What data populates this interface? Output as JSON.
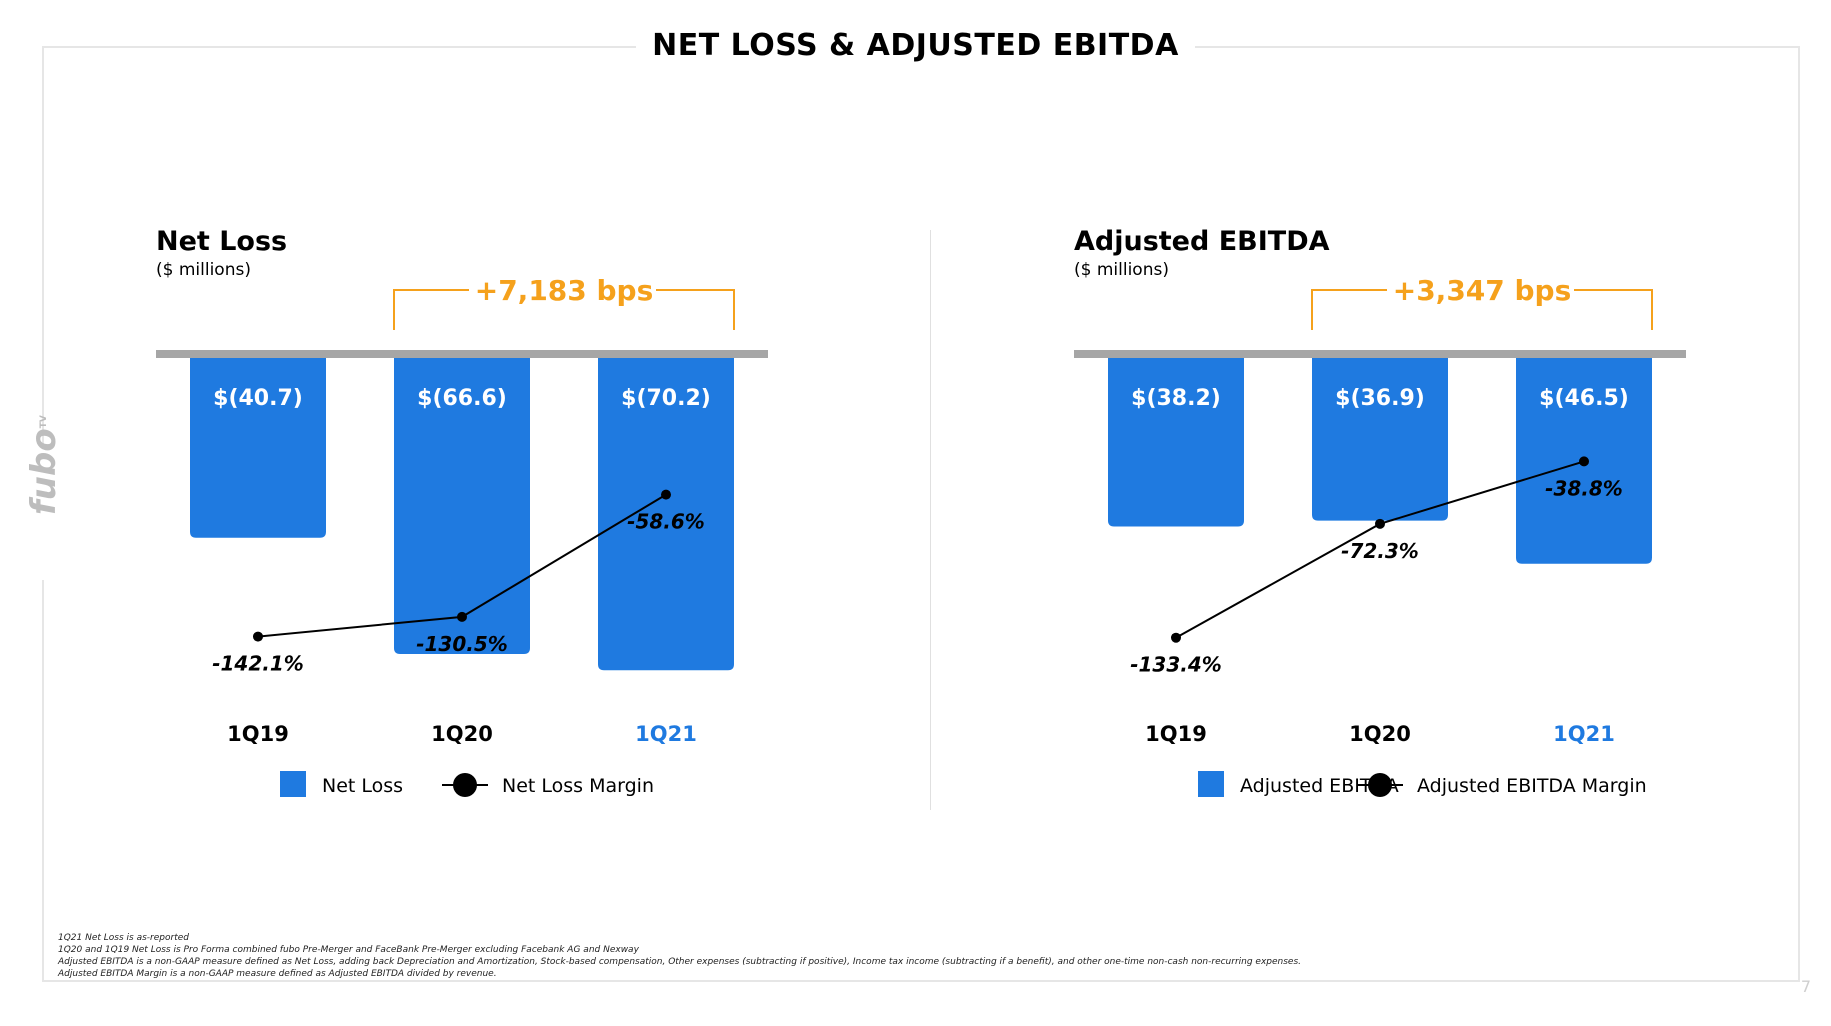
{
  "slide": {
    "title": "NET LOSS & ADJUSTED EBITDA",
    "logo_text": "fubo",
    "logo_sup": "TV",
    "page_number": "7"
  },
  "footnotes": [
    "1Q21 Net Loss is as-reported",
    "1Q20 and 1Q19 Net Loss is Pro Forma combined fubo Pre-Merger and FaceBank Pre-Merger excluding Facebank AG and Nexway",
    "Adjusted EBITDA is a non-GAAP measure defined as Net Loss, adding back Depreciation and Amortization, Stock-based compensation, Other expenses (subtracting if positive), Income tax income (subtracting if a benefit), and other one-time non-cash non-recurring expenses.",
    "Adjusted EBITDA Margin is a non-GAAP measure defined as Adjusted EBITDA divided by revenue."
  ],
  "chart_data": [
    {
      "type": "bar",
      "title": "Net Loss",
      "subtitle": "($ millions)",
      "categories": [
        "1Q19",
        "1Q20",
        "1Q21"
      ],
      "highlight_category": "1Q21",
      "series": [
        {
          "name": "Net Loss",
          "values": [
            -40.7,
            -66.6,
            -70.2
          ],
          "labels": [
            "$(40.7)",
            "$(66.6)",
            "$(70.2)"
          ],
          "color": "#1f7ae0"
        },
        {
          "name": "Net Loss Margin",
          "values": [
            -142.1,
            -130.5,
            -58.6
          ],
          "labels": [
            "-142.1%",
            "-130.5%",
            "-58.6%"
          ],
          "color": "#000000"
        }
      ],
      "annotation": "+7,183 bps",
      "annotation_color": "#f5a11c",
      "legend": [
        "Net Loss",
        "Net Loss Margin"
      ],
      "legend_position": "bottom"
    },
    {
      "type": "bar",
      "title": "Adjusted EBITDA",
      "subtitle": "($ millions)",
      "categories": [
        "1Q19",
        "1Q20",
        "1Q21"
      ],
      "highlight_category": "1Q21",
      "series": [
        {
          "name": "Adjusted EBITDA",
          "values": [
            -38.2,
            -36.9,
            -46.5
          ],
          "labels": [
            "$(38.2)",
            "$(36.9)",
            "$(46.5)"
          ],
          "color": "#1f7ae0"
        },
        {
          "name": "Adjusted EBITDA Margin",
          "values": [
            -133.4,
            -72.3,
            -38.8
          ],
          "labels": [
            "-133.4%",
            "-72.3%",
            "-38.8%"
          ],
          "color": "#000000"
        }
      ],
      "annotation": "+3,347 bps",
      "annotation_color": "#f5a11c",
      "legend": [
        "Adjusted EBITDA",
        "Adjusted EBITDA Margin"
      ],
      "legend_position": "bottom"
    }
  ]
}
